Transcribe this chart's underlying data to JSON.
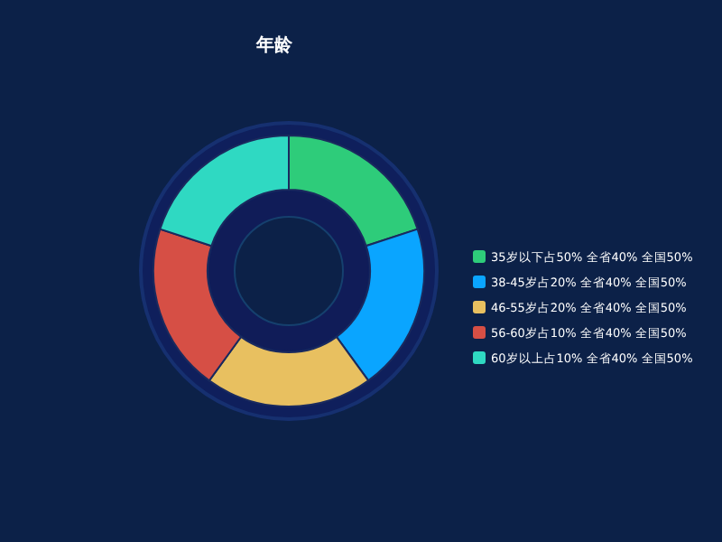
{
  "chart_data": {
    "type": "donut",
    "title": "年龄",
    "categories": [
      "35岁以下占50% 全省40% 全国50%",
      "38-45岁占20% 全省40% 全国50%",
      "46-55岁占20% 全省40% 全国50%",
      "56-60岁占10% 全省40% 全国50%",
      "60岁以上占10% 全省40% 全国50%"
    ],
    "values": [
      20,
      20,
      20,
      20,
      20
    ],
    "colors": [
      "#2ecc7a",
      "#0aa5ff",
      "#e8c060",
      "#d64f45",
      "#2fd9c2"
    ],
    "legend": "right"
  }
}
